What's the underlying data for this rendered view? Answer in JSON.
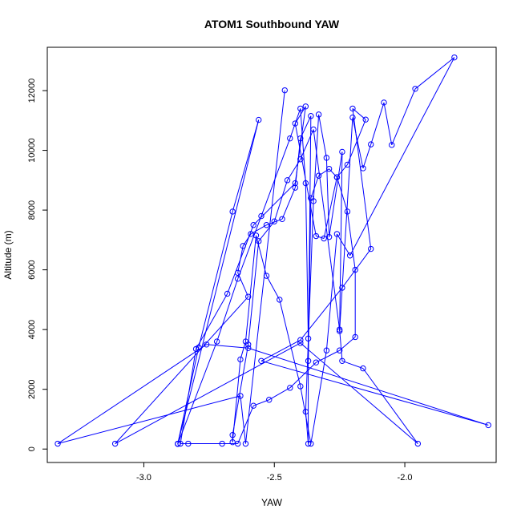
{
  "chart_data": {
    "type": "line",
    "title": "ATOM1 Southbound YAW",
    "xlabel": "YAW",
    "ylabel": "Altitude (m)",
    "xlim": [
      -3.37,
      -1.65
    ],
    "ylim": [
      -450,
      13450
    ],
    "x_ticks": [
      -3.0,
      -2.5,
      -2.0
    ],
    "x_tick_labels": [
      "-3.0",
      "-2.5",
      "-2.0"
    ],
    "y_ticks": [
      0,
      2000,
      4000,
      6000,
      8000,
      10000,
      12000
    ],
    "y_tick_labels": [
      "0",
      "2000",
      "4000",
      "6000",
      "8000",
      "10000",
      "12000"
    ],
    "grid": false,
    "series": [
      {
        "color": "#0000ff",
        "marker": "circle-open",
        "points": [
          {
            "x": -2.87,
            "y": 180
          },
          {
            "x": -2.79,
            "y": 3400
          },
          {
            "x": -2.66,
            "y": 7950
          },
          {
            "x": -2.56,
            "y": 11020
          },
          {
            "x": -2.87,
            "y": 170
          },
          {
            "x": -2.72,
            "y": 3600
          },
          {
            "x": -2.64,
            "y": 5700
          },
          {
            "x": -2.55,
            "y": 7800
          },
          {
            "x": -2.44,
            "y": 10400
          },
          {
            "x": -2.4,
            "y": 11400
          },
          {
            "x": -2.38,
            "y": 8900
          },
          {
            "x": -2.37,
            "y": 3700
          },
          {
            "x": -2.37,
            "y": 180
          },
          {
            "x": -2.38,
            "y": 1250
          },
          {
            "x": -2.35,
            "y": 8300
          },
          {
            "x": -2.33,
            "y": 11200
          },
          {
            "x": -2.3,
            "y": 9750
          },
          {
            "x": -2.29,
            "y": 7100
          },
          {
            "x": -2.24,
            "y": 9950
          },
          {
            "x": -2.25,
            "y": 3950
          },
          {
            "x": -2.2,
            "y": 11100
          },
          {
            "x": -2.16,
            "y": 9400
          },
          {
            "x": -2.13,
            "y": 10200
          },
          {
            "x": -2.08,
            "y": 11600
          },
          {
            "x": -2.05,
            "y": 10180
          },
          {
            "x": -1.96,
            "y": 12060
          },
          {
            "x": -1.81,
            "y": 13110
          },
          {
            "x": -2.21,
            "y": 6480
          },
          {
            "x": -2.26,
            "y": 7200
          },
          {
            "x": -2.3,
            "y": 3300
          },
          {
            "x": -2.36,
            "y": 180
          },
          {
            "x": -2.4,
            "y": 2100
          },
          {
            "x": -2.48,
            "y": 5000
          },
          {
            "x": -2.53,
            "y": 5800
          },
          {
            "x": -2.57,
            "y": 7150
          },
          {
            "x": -2.61,
            "y": 3600
          },
          {
            "x": -2.63,
            "y": 3000
          },
          {
            "x": -2.66,
            "y": 230
          },
          {
            "x": -2.66,
            "y": 470
          },
          {
            "x": -2.6,
            "y": 3500
          },
          {
            "x": -2.56,
            "y": 6960
          },
          {
            "x": -2.5,
            "y": 7620
          },
          {
            "x": -2.45,
            "y": 9000
          },
          {
            "x": -2.4,
            "y": 9700
          },
          {
            "x": -2.35,
            "y": 10700
          },
          {
            "x": -2.25,
            "y": 4000
          },
          {
            "x": -2.24,
            "y": 2950
          },
          {
            "x": -2.16,
            "y": 2700
          },
          {
            "x": -1.95,
            "y": 180
          },
          {
            "x": -2.4,
            "y": 3550
          },
          {
            "x": -3.11,
            "y": 180
          },
          {
            "x": -2.6,
            "y": 5100
          },
          {
            "x": -2.64,
            "y": 5900
          },
          {
            "x": -2.62,
            "y": 6800
          },
          {
            "x": -2.59,
            "y": 7200
          },
          {
            "x": -2.53,
            "y": 7500
          },
          {
            "x": -2.47,
            "y": 7700
          },
          {
            "x": -2.42,
            "y": 8750
          },
          {
            "x": -2.4,
            "y": 10400
          },
          {
            "x": -2.36,
            "y": 11150
          },
          {
            "x": -2.37,
            "y": 2950
          },
          {
            "x": -2.36,
            "y": 8400
          },
          {
            "x": -2.33,
            "y": 9150
          },
          {
            "x": -2.29,
            "y": 9380
          },
          {
            "x": -2.26,
            "y": 9100
          },
          {
            "x": -2.22,
            "y": 7950
          },
          {
            "x": -2.19,
            "y": 6000
          },
          {
            "x": -2.19,
            "y": 3750
          },
          {
            "x": -2.25,
            "y": 3300
          },
          {
            "x": -2.34,
            "y": 2900
          },
          {
            "x": -2.44,
            "y": 2050
          },
          {
            "x": -2.52,
            "y": 1650
          },
          {
            "x": -2.58,
            "y": 1450
          },
          {
            "x": -2.64,
            "y": 180
          },
          {
            "x": -2.7,
            "y": 180
          },
          {
            "x": -2.83,
            "y": 180
          },
          {
            "x": -2.86,
            "y": 180
          },
          {
            "x": -2.8,
            "y": 3350
          },
          {
            "x": -2.68,
            "y": 5200
          },
          {
            "x": -2.58,
            "y": 7500
          },
          {
            "x": -2.42,
            "y": 8900
          },
          {
            "x": -2.38,
            "y": 11470
          },
          {
            "x": -2.42,
            "y": 10900
          },
          {
            "x": -2.34,
            "y": 7130
          },
          {
            "x": -2.31,
            "y": 7050
          },
          {
            "x": -2.26,
            "y": 9100
          },
          {
            "x": -2.22,
            "y": 9520
          },
          {
            "x": -2.15,
            "y": 11030
          },
          {
            "x": -2.2,
            "y": 11400
          },
          {
            "x": -2.13,
            "y": 6700
          },
          {
            "x": -2.24,
            "y": 5400
          },
          {
            "x": -2.4,
            "y": 3650
          },
          {
            "x": -2.55,
            "y": 2950
          },
          {
            "x": -1.68,
            "y": 800
          },
          {
            "x": -2.6,
            "y": 3380
          },
          {
            "x": -2.76,
            "y": 3500
          },
          {
            "x": -3.33,
            "y": 180
          },
          {
            "x": -2.63,
            "y": 1780
          },
          {
            "x": -2.61,
            "y": 180
          },
          {
            "x": -2.46,
            "y": 12010
          }
        ]
      }
    ]
  }
}
